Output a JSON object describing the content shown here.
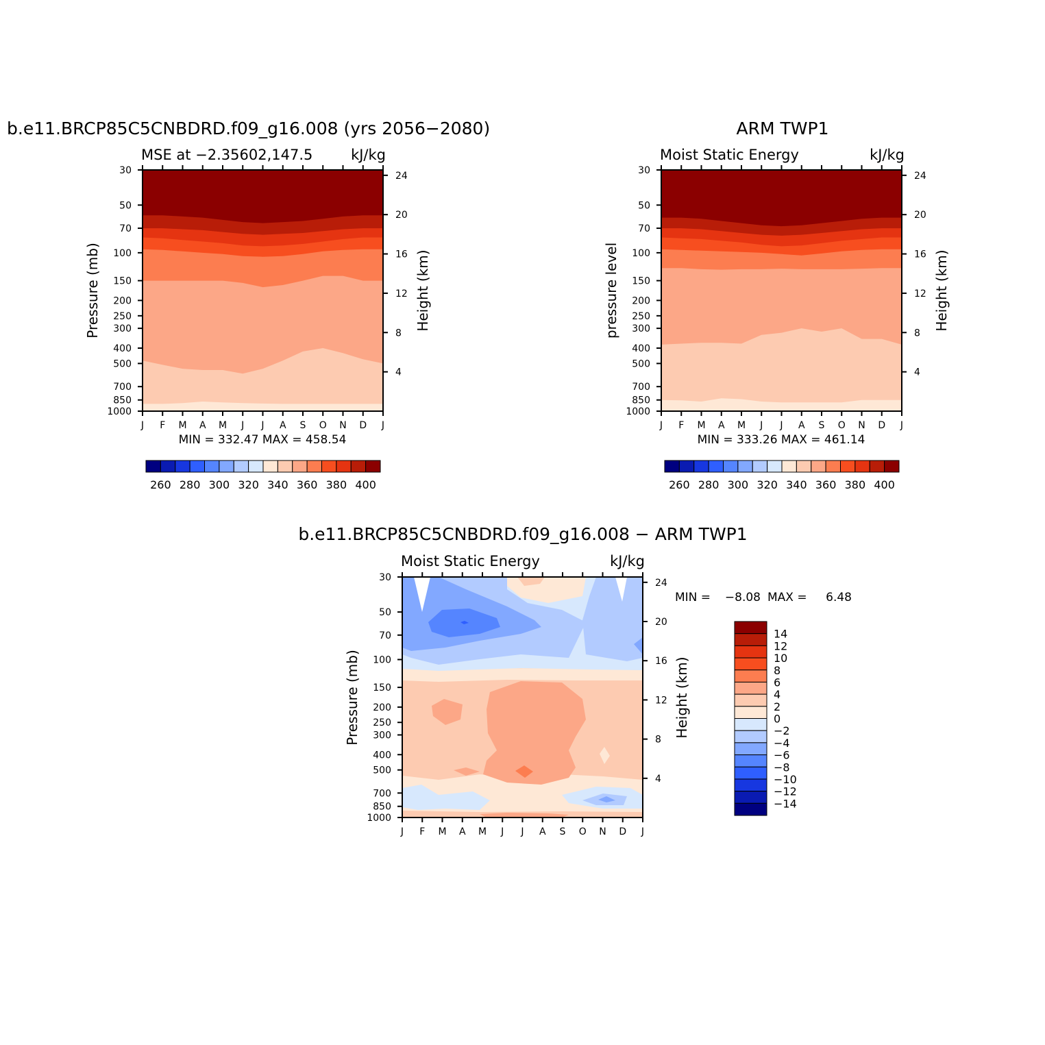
{
  "colors": {
    "cool": [
      "#000080",
      "#0a1bb2",
      "#1737e0",
      "#2f5fff",
      "#5585ff",
      "#82a8ff",
      "#b2cbff",
      "#d7e8fd"
    ],
    "warm": [
      "#fee8d6",
      "#fdcbb1",
      "#fca787",
      "#fc7d50",
      "#f74e1f",
      "#e53411",
      "#b81d08",
      "#8b0000"
    ]
  },
  "chart_data": [
    {
      "type": "contour",
      "title": "b.e11.BRCP85C5CNBDRD.f09_g16.008 (yrs 2056−2080)",
      "subtitle_left": "MSE at −2.35602,147.5",
      "subtitle_right": "kJ/kg",
      "ylabel": "Pressure (mb)",
      "ylabel_right": "Height (km)",
      "x_ticks": [
        "J",
        "F",
        "M",
        "A",
        "M",
        "J",
        "J",
        "A",
        "S",
        "O",
        "N",
        "D",
        "J"
      ],
      "y_ticks": [
        "30",
        "50",
        "70",
        "100",
        "150",
        "200",
        "250",
        "300",
        "400",
        "500",
        "700",
        "850",
        "1000"
      ],
      "y_ticks_right": [
        "24",
        "20",
        "16",
        "12",
        "8",
        "4"
      ],
      "stats": "MIN = 332.47 MAX = 458.54",
      "colorbar_labels": [
        "260",
        "280",
        "300",
        "320",
        "340",
        "360",
        "380",
        "400"
      ],
      "levels": [
        340,
        350,
        360,
        370,
        380,
        390,
        400
      ],
      "boundaries_hPa": [
        [
          1000,
          1000,
          1000,
          1000,
          1000,
          1000,
          1000,
          1000,
          1000,
          1000,
          1000,
          1000,
          1000
        ],
        [
          900,
          900,
          890,
          870,
          880,
          890,
          895,
          900,
          900,
          900,
          900,
          900,
          900
        ],
        [
          480,
          510,
          540,
          550,
          550,
          580,
          540,
          480,
          420,
          400,
          430,
          470,
          500
        ],
        [
          150,
          150,
          150,
          150,
          150,
          155,
          165,
          160,
          150,
          140,
          140,
          150,
          150
        ],
        [
          95,
          96,
          98,
          100,
          102,
          105,
          106,
          105,
          102,
          98,
          96,
          95,
          95
        ],
        [
          80,
          81,
          83,
          85,
          87,
          90,
          91,
          90,
          88,
          85,
          82,
          80,
          80
        ],
        [
          70,
          70,
          71,
          72,
          74,
          76,
          77,
          76,
          75,
          73,
          71,
          70,
          70
        ],
        [
          58,
          58,
          59,
          60,
          62,
          64,
          65,
          64,
          63,
          61,
          59,
          58,
          58
        ]
      ]
    },
    {
      "type": "contour",
      "title": "ARM TWP1",
      "subtitle_left": "Moist Static Energy",
      "subtitle_right": "kJ/kg",
      "ylabel": "pressure level",
      "ylabel_right": "Height (km)",
      "x_ticks": [
        "J",
        "F",
        "M",
        "A",
        "M",
        "J",
        "J",
        "A",
        "S",
        "O",
        "N",
        "D",
        "J"
      ],
      "y_ticks": [
        "30",
        "50",
        "70",
        "100",
        "150",
        "200",
        "250",
        "300",
        "400",
        "500",
        "700",
        "850",
        "1000"
      ],
      "y_ticks_right": [
        "24",
        "20",
        "16",
        "12",
        "8",
        "4"
      ],
      "stats": "MIN = 333.26 MAX = 461.14",
      "colorbar_labels": [
        "260",
        "280",
        "300",
        "320",
        "340",
        "360",
        "380",
        "400"
      ],
      "levels": [
        340,
        350,
        360,
        370,
        380,
        390,
        400
      ],
      "boundaries_hPa": [
        [
          1000,
          1000,
          1000,
          1000,
          1000,
          1000,
          1000,
          1000,
          1000,
          1000,
          1000,
          1000,
          1000
        ],
        [
          850,
          855,
          870,
          830,
          840,
          870,
          880,
          880,
          880,
          880,
          850,
          850,
          850
        ],
        [
          380,
          375,
          370,
          370,
          375,
          330,
          320,
          300,
          315,
          300,
          350,
          350,
          380
        ],
        [
          125,
          125,
          127,
          128,
          127,
          127,
          126,
          127,
          127,
          127,
          126,
          125,
          125
        ],
        [
          95,
          96,
          97,
          98,
          99,
          100,
          102,
          104,
          101,
          98,
          96,
          95,
          95
        ],
        [
          80,
          81,
          82,
          84,
          86,
          89,
          91,
          90,
          87,
          84,
          82,
          80,
          80
        ],
        [
          70,
          70,
          71,
          73,
          75,
          77,
          78,
          77,
          75,
          73,
          71,
          70,
          70
        ],
        [
          60,
          60,
          61,
          63,
          65,
          67,
          68,
          67,
          65,
          63,
          61,
          60,
          60
        ]
      ]
    },
    {
      "type": "contour",
      "title": "b.e11.BRCP85C5CNBDRD.f09_g16.008 − ARM TWP1",
      "subtitle_left": "Moist Static Energy",
      "subtitle_right": "kJ/kg",
      "ylabel": "Pressure (mb)",
      "ylabel_right": "Height (km)",
      "x_ticks": [
        "J",
        "F",
        "M",
        "A",
        "M",
        "J",
        "J",
        "A",
        "S",
        "O",
        "N",
        "D",
        "J"
      ],
      "y_ticks": [
        "30",
        "50",
        "70",
        "100",
        "150",
        "200",
        "250",
        "300",
        "400",
        "500",
        "700",
        "850",
        "1000"
      ],
      "y_ticks_right": [
        "24",
        "20",
        "16",
        "12",
        "8",
        "4"
      ],
      "stats_min_label": "MIN =",
      "stats_min": "−8.08",
      "stats_max_label": "MAX =",
      "stats_max": "6.48",
      "colorbar_labels": [
        "14",
        "12",
        "10",
        "8",
        "6",
        "4",
        "2",
        "0",
        "−2",
        "−4",
        "−6",
        "−8",
        "−10",
        "−12",
        "−14"
      ],
      "levels": [
        -14,
        -12,
        -10,
        -8,
        -6,
        -4,
        -2,
        0,
        2,
        4,
        6,
        8,
        10,
        12,
        14
      ]
    }
  ]
}
